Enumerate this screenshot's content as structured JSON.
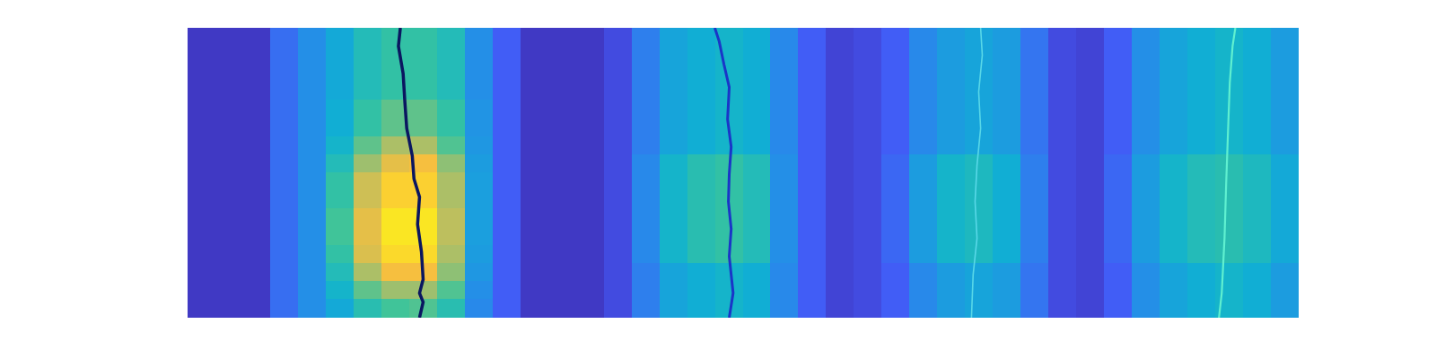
{
  "chart_data": {
    "type": "heatmap",
    "xlim": [
      0,
      40
    ],
    "ylim": [
      0,
      16
    ],
    "clim": [
      0,
      1
    ],
    "tick_labels": false,
    "grid": false,
    "cells": [
      [
        0.05,
        0.05,
        0.05,
        0.2,
        0.3,
        0.4,
        0.5,
        0.55,
        0.55,
        0.5,
        0.3,
        0.15,
        0.05,
        0.05,
        0.05,
        0.1,
        0.25,
        0.38,
        0.42,
        0.45,
        0.42,
        0.28,
        0.15,
        0.08,
        0.1,
        0.15,
        0.28,
        0.35,
        0.38,
        0.35,
        0.22,
        0.1,
        0.08,
        0.15,
        0.3,
        0.38,
        0.42,
        0.45,
        0.42,
        0.35
      ],
      [
        0.05,
        0.05,
        0.05,
        0.2,
        0.3,
        0.4,
        0.5,
        0.55,
        0.55,
        0.5,
        0.3,
        0.15,
        0.05,
        0.05,
        0.05,
        0.1,
        0.25,
        0.38,
        0.42,
        0.45,
        0.42,
        0.28,
        0.15,
        0.08,
        0.1,
        0.15,
        0.28,
        0.35,
        0.38,
        0.35,
        0.22,
        0.1,
        0.08,
        0.15,
        0.3,
        0.38,
        0.42,
        0.45,
        0.42,
        0.35
      ],
      [
        0.05,
        0.05,
        0.05,
        0.2,
        0.3,
        0.4,
        0.5,
        0.55,
        0.55,
        0.5,
        0.3,
        0.15,
        0.05,
        0.05,
        0.05,
        0.1,
        0.25,
        0.38,
        0.42,
        0.45,
        0.42,
        0.28,
        0.15,
        0.08,
        0.1,
        0.15,
        0.28,
        0.35,
        0.38,
        0.35,
        0.22,
        0.1,
        0.08,
        0.15,
        0.3,
        0.38,
        0.42,
        0.45,
        0.42,
        0.35
      ],
      [
        0.05,
        0.05,
        0.05,
        0.2,
        0.3,
        0.4,
        0.5,
        0.55,
        0.55,
        0.5,
        0.3,
        0.15,
        0.05,
        0.05,
        0.05,
        0.1,
        0.25,
        0.38,
        0.42,
        0.45,
        0.42,
        0.28,
        0.15,
        0.08,
        0.1,
        0.15,
        0.28,
        0.35,
        0.38,
        0.35,
        0.22,
        0.1,
        0.08,
        0.15,
        0.3,
        0.38,
        0.42,
        0.45,
        0.42,
        0.35
      ],
      [
        0.05,
        0.05,
        0.05,
        0.2,
        0.3,
        0.42,
        0.55,
        0.62,
        0.62,
        0.55,
        0.32,
        0.15,
        0.05,
        0.05,
        0.05,
        0.1,
        0.25,
        0.38,
        0.42,
        0.45,
        0.42,
        0.28,
        0.15,
        0.08,
        0.1,
        0.15,
        0.28,
        0.35,
        0.38,
        0.35,
        0.22,
        0.1,
        0.08,
        0.15,
        0.3,
        0.38,
        0.42,
        0.45,
        0.42,
        0.35
      ],
      [
        0.05,
        0.05,
        0.05,
        0.2,
        0.3,
        0.42,
        0.55,
        0.62,
        0.62,
        0.55,
        0.32,
        0.15,
        0.05,
        0.05,
        0.05,
        0.1,
        0.25,
        0.38,
        0.42,
        0.45,
        0.42,
        0.28,
        0.15,
        0.08,
        0.1,
        0.15,
        0.28,
        0.35,
        0.38,
        0.35,
        0.22,
        0.1,
        0.08,
        0.15,
        0.3,
        0.38,
        0.42,
        0.45,
        0.42,
        0.35
      ],
      [
        0.05,
        0.05,
        0.05,
        0.2,
        0.3,
        0.45,
        0.62,
        0.72,
        0.72,
        0.6,
        0.33,
        0.15,
        0.05,
        0.05,
        0.05,
        0.1,
        0.25,
        0.38,
        0.42,
        0.45,
        0.42,
        0.28,
        0.15,
        0.08,
        0.1,
        0.15,
        0.28,
        0.35,
        0.38,
        0.35,
        0.22,
        0.1,
        0.08,
        0.15,
        0.3,
        0.38,
        0.42,
        0.45,
        0.42,
        0.35
      ],
      [
        0.05,
        0.05,
        0.05,
        0.2,
        0.3,
        0.5,
        0.7,
        0.82,
        0.85,
        0.68,
        0.35,
        0.15,
        0.05,
        0.05,
        0.05,
        0.1,
        0.28,
        0.45,
        0.52,
        0.55,
        0.5,
        0.3,
        0.15,
        0.08,
        0.1,
        0.18,
        0.35,
        0.45,
        0.48,
        0.42,
        0.25,
        0.1,
        0.08,
        0.18,
        0.35,
        0.45,
        0.5,
        0.52,
        0.48,
        0.4
      ],
      [
        0.05,
        0.05,
        0.05,
        0.2,
        0.3,
        0.55,
        0.78,
        0.9,
        0.9,
        0.72,
        0.36,
        0.15,
        0.05,
        0.05,
        0.05,
        0.1,
        0.28,
        0.45,
        0.52,
        0.55,
        0.5,
        0.3,
        0.15,
        0.08,
        0.1,
        0.18,
        0.35,
        0.45,
        0.48,
        0.42,
        0.25,
        0.1,
        0.08,
        0.18,
        0.35,
        0.45,
        0.5,
        0.52,
        0.48,
        0.4
      ],
      [
        0.05,
        0.05,
        0.05,
        0.2,
        0.3,
        0.55,
        0.78,
        0.9,
        0.9,
        0.72,
        0.36,
        0.15,
        0.05,
        0.05,
        0.05,
        0.1,
        0.28,
        0.45,
        0.52,
        0.55,
        0.5,
        0.3,
        0.15,
        0.08,
        0.1,
        0.18,
        0.35,
        0.45,
        0.48,
        0.42,
        0.25,
        0.1,
        0.08,
        0.18,
        0.35,
        0.45,
        0.5,
        0.52,
        0.48,
        0.4
      ],
      [
        0.05,
        0.05,
        0.05,
        0.2,
        0.3,
        0.58,
        0.82,
        0.95,
        0.95,
        0.75,
        0.36,
        0.15,
        0.05,
        0.05,
        0.05,
        0.1,
        0.28,
        0.45,
        0.52,
        0.55,
        0.5,
        0.3,
        0.15,
        0.08,
        0.1,
        0.18,
        0.35,
        0.45,
        0.48,
        0.42,
        0.25,
        0.1,
        0.08,
        0.18,
        0.35,
        0.45,
        0.5,
        0.52,
        0.48,
        0.4
      ],
      [
        0.05,
        0.05,
        0.05,
        0.2,
        0.3,
        0.58,
        0.82,
        0.95,
        0.95,
        0.75,
        0.36,
        0.15,
        0.05,
        0.05,
        0.05,
        0.1,
        0.28,
        0.45,
        0.52,
        0.55,
        0.5,
        0.3,
        0.15,
        0.08,
        0.1,
        0.18,
        0.35,
        0.45,
        0.48,
        0.42,
        0.25,
        0.1,
        0.08,
        0.18,
        0.35,
        0.45,
        0.5,
        0.52,
        0.48,
        0.4
      ],
      [
        0.05,
        0.05,
        0.05,
        0.2,
        0.3,
        0.55,
        0.8,
        0.92,
        0.92,
        0.72,
        0.35,
        0.15,
        0.05,
        0.05,
        0.05,
        0.1,
        0.28,
        0.45,
        0.52,
        0.55,
        0.5,
        0.3,
        0.15,
        0.08,
        0.1,
        0.18,
        0.35,
        0.45,
        0.48,
        0.42,
        0.25,
        0.1,
        0.08,
        0.18,
        0.35,
        0.45,
        0.5,
        0.52,
        0.48,
        0.4
      ],
      [
        0.05,
        0.05,
        0.05,
        0.2,
        0.3,
        0.5,
        0.72,
        0.85,
        0.85,
        0.68,
        0.33,
        0.15,
        0.05,
        0.05,
        0.05,
        0.1,
        0.25,
        0.38,
        0.42,
        0.45,
        0.42,
        0.28,
        0.15,
        0.08,
        0.1,
        0.15,
        0.28,
        0.35,
        0.38,
        0.35,
        0.22,
        0.1,
        0.08,
        0.15,
        0.3,
        0.38,
        0.42,
        0.45,
        0.42,
        0.35
      ],
      [
        0.05,
        0.05,
        0.05,
        0.2,
        0.3,
        0.45,
        0.62,
        0.7,
        0.7,
        0.6,
        0.3,
        0.15,
        0.05,
        0.05,
        0.05,
        0.1,
        0.25,
        0.38,
        0.42,
        0.45,
        0.42,
        0.28,
        0.15,
        0.08,
        0.1,
        0.15,
        0.28,
        0.35,
        0.38,
        0.35,
        0.22,
        0.1,
        0.08,
        0.15,
        0.3,
        0.38,
        0.42,
        0.45,
        0.42,
        0.35
      ],
      [
        0.05,
        0.05,
        0.05,
        0.2,
        0.3,
        0.4,
        0.52,
        0.58,
        0.6,
        0.52,
        0.28,
        0.15,
        0.05,
        0.05,
        0.05,
        0.1,
        0.25,
        0.38,
        0.42,
        0.45,
        0.42,
        0.28,
        0.15,
        0.08,
        0.1,
        0.15,
        0.28,
        0.35,
        0.38,
        0.35,
        0.22,
        0.1,
        0.08,
        0.15,
        0.3,
        0.38,
        0.42,
        0.45,
        0.42,
        0.35
      ]
    ],
    "series": [
      {
        "type": "line",
        "color": "#0a1660",
        "x": [
          7.66,
          7.59,
          7.76,
          7.82,
          7.89,
          8.09,
          8.15,
          8.35,
          8.28,
          8.42,
          8.48,
          8.35,
          8.48,
          8.35
        ],
        "values": [
          16.0,
          14.99,
          13.48,
          11.96,
          10.45,
          8.93,
          7.67,
          6.66,
          5.15,
          3.63,
          2.12,
          1.36,
          0.86,
          0
        ]
      },
      {
        "type": "line",
        "color": "#1a35c8",
        "x": [
          18.98,
          19.14,
          19.31,
          19.5,
          19.44,
          19.57,
          19.5,
          19.47,
          19.57,
          19.5,
          19.64,
          19.5
        ],
        "values": [
          16.0,
          15.24,
          13.98,
          12.72,
          10.95,
          9.44,
          7.92,
          6.41,
          4.9,
          3.38,
          1.36,
          0
        ]
      },
      {
        "type": "line",
        "color": "#58d8e8",
        "x": [
          28.55,
          28.61,
          28.48,
          28.55,
          28.42,
          28.35,
          28.42,
          28.28,
          28.22
        ],
        "values": [
          16.0,
          14.49,
          12.47,
          10.45,
          8.43,
          6.41,
          4.39,
          2.37,
          0
        ]
      },
      {
        "type": "line",
        "color": "#5ff0d0",
        "x": [
          37.72,
          37.62,
          37.52,
          37.46,
          37.39,
          37.33,
          37.23,
          37.13
        ],
        "values": [
          16.0,
          14.99,
          12.97,
          10.45,
          7.42,
          4.39,
          1.36,
          0
        ]
      }
    ]
  }
}
